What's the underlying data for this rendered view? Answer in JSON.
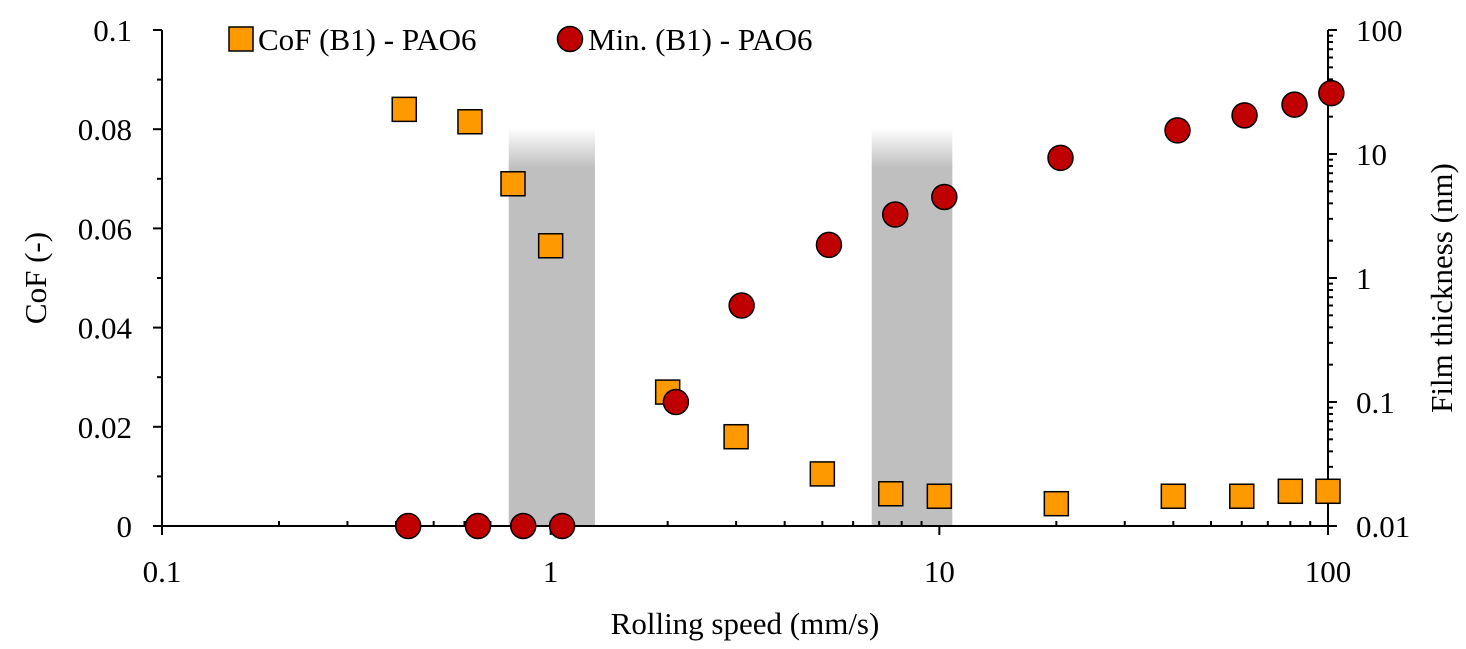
{
  "chart_data": {
    "type": "scatter",
    "x_scale": "log",
    "xlim": [
      0.1,
      100
    ],
    "xlabel": "Rolling speed (mm/s)",
    "x_ticks": [
      {
        "value": 0.1,
        "label": "0.1"
      },
      {
        "value": 1,
        "label": "1"
      },
      {
        "value": 10,
        "label": "10"
      },
      {
        "value": 100,
        "label": "100"
      }
    ],
    "y_left": {
      "label": "CoF (-)",
      "scale": "linear",
      "lim": [
        0,
        0.1
      ],
      "ticks": [
        {
          "value": 0,
          "label": "0"
        },
        {
          "value": 0.02,
          "label": "0.02"
        },
        {
          "value": 0.04,
          "label": "0.04"
        },
        {
          "value": 0.06,
          "label": "0.06"
        },
        {
          "value": 0.08,
          "label": "0.08"
        },
        {
          "value": 0.1,
          "label": "0.1"
        }
      ]
    },
    "y_right": {
      "label": "Film thickness (nm)",
      "scale": "log",
      "lim": [
        0.01,
        100
      ],
      "ticks": [
        {
          "value": 0.01,
          "label": "0.01"
        },
        {
          "value": 0.1,
          "label": "0.1"
        },
        {
          "value": 1,
          "label": "1"
        },
        {
          "value": 10,
          "label": "10"
        },
        {
          "value": 100,
          "label": "100"
        }
      ]
    },
    "shaded_regions": [
      {
        "x_from": 0.78,
        "x_to": 1.3
      },
      {
        "x_from": 6.7,
        "x_to": 10.8
      }
    ],
    "legend_position": "top",
    "grid": false,
    "series": [
      {
        "name": "CoF (B1) - PAO6",
        "axis": "left",
        "marker": "square",
        "color": "#FF9900",
        "x": [
          0.42,
          0.62,
          0.8,
          1.0,
          2.0,
          3.0,
          5.0,
          7.5,
          10,
          20,
          40,
          60,
          80,
          100
        ],
        "y": [
          0.084,
          0.0815,
          0.069,
          0.0565,
          0.027,
          0.018,
          0.0105,
          0.0065,
          0.006,
          0.0045,
          0.006,
          0.006,
          0.007,
          0.007
        ]
      },
      {
        "name": "Min. (B1) - PAO6",
        "axis": "right",
        "marker": "circle",
        "color": "#C00000",
        "x": [
          0.43,
          0.65,
          0.85,
          1.07,
          2.1,
          3.1,
          5.2,
          7.7,
          10.3,
          20.5,
          41,
          61,
          82,
          102
        ],
        "y": [
          0.01,
          0.01,
          0.01,
          0.01,
          0.1,
          0.6,
          1.85,
          3.25,
          4.5,
          9.3,
          15.5,
          20.5,
          25,
          31
        ]
      }
    ]
  }
}
